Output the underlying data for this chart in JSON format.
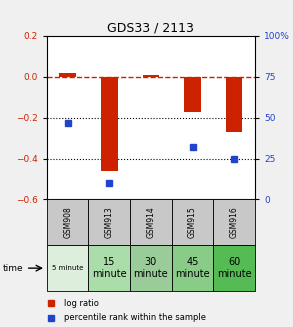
{
  "title": "GDS33 / 2113",
  "samples": [
    "GSM908",
    "GSM913",
    "GSM914",
    "GSM915",
    "GSM916"
  ],
  "time_labels": [
    "5 minute",
    "15\nminute",
    "30\nminute",
    "45\nminute",
    "60\nminute"
  ],
  "time_small": [
    true,
    false,
    false,
    false,
    false
  ],
  "log_ratio": [
    0.02,
    -0.46,
    0.0,
    -0.17,
    -0.27
  ],
  "percentile_rank": [
    47,
    10,
    null,
    32,
    25
  ],
  "ylim_left": [
    -0.6,
    0.2
  ],
  "ylim_right": [
    0,
    100
  ],
  "yticks_left": [
    -0.6,
    -0.4,
    -0.2,
    0.0,
    0.2
  ],
  "yticks_right": [
    0,
    25,
    50,
    75,
    100
  ],
  "bar_color": "#cc2200",
  "dot_color": "#2244cc",
  "zero_line_color": "#cc2200",
  "grid_color": "#000000",
  "bg_color": "#f0f0f0",
  "plot_bg": "#ffffff",
  "sample_bg": "#c8c8c8",
  "time_bg_colors": [
    "#ddeedd",
    "#aaddaa",
    "#99cc99",
    "#88cc88",
    "#55bb55"
  ],
  "legend_bar_label": "log ratio",
  "legend_dot_label": "percentile rank within the sample",
  "left_label_color": "#cc2200",
  "right_label_color": "#2244cc"
}
